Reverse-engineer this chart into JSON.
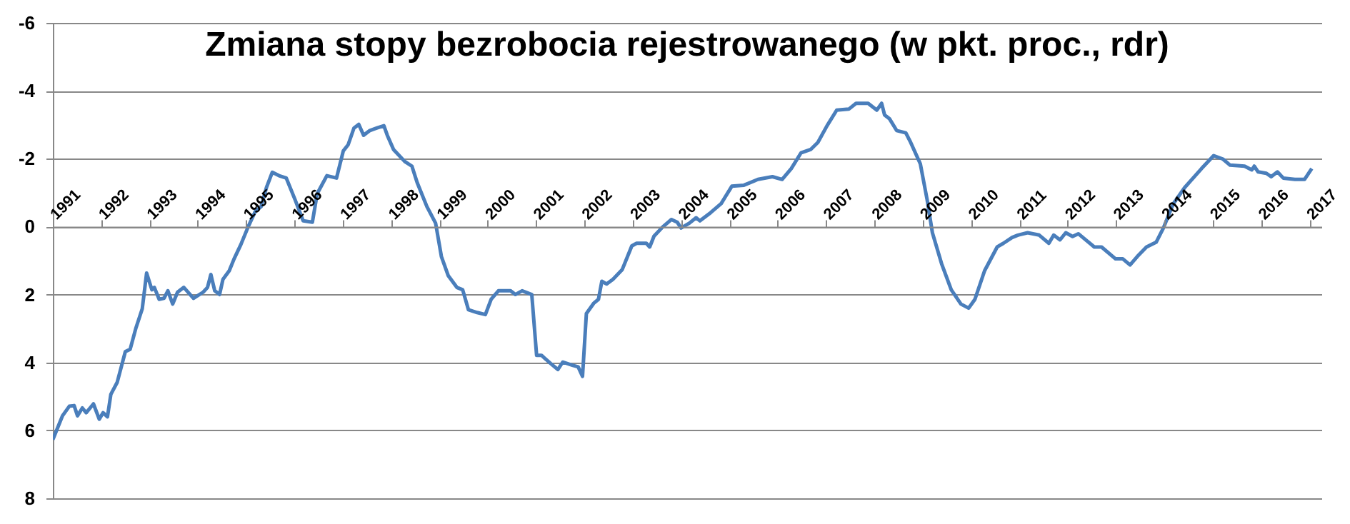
{
  "chart_data": {
    "type": "line",
    "title": "Zmiana stopy bezrobocia rejestrowanego (w pkt. proc., rdr)",
    "xlim": [
      1991,
      2017.25
    ],
    "xticks": [
      1991,
      1992,
      1993,
      1994,
      1995,
      1996,
      1997,
      1998,
      1999,
      2000,
      2001,
      2002,
      2003,
      2004,
      2005,
      2006,
      2007,
      2008,
      2009,
      2010,
      2011,
      2012,
      2013,
      2014,
      2015,
      2016,
      2017
    ],
    "ylim": [
      8,
      -6
    ],
    "yticks": [
      -6,
      -4,
      -2,
      0,
      2,
      4,
      6,
      8
    ],
    "grid": "y",
    "marker": "none",
    "line_style": "solid",
    "series": [
      {
        "color": "#4a7ebb",
        "x": [
          1991.0,
          1991.1,
          1991.2,
          1991.34,
          1991.44,
          1991.51,
          1991.61,
          1991.69,
          1991.84,
          1991.96,
          1992.04,
          1992.13,
          1992.2,
          1992.33,
          1992.5,
          1992.6,
          1992.72,
          1992.85,
          1992.94,
          1993.05,
          1993.1,
          1993.2,
          1993.3,
          1993.38,
          1993.48,
          1993.58,
          1993.71,
          1993.91,
          1994.11,
          1994.2,
          1994.27,
          1994.35,
          1994.45,
          1994.52,
          1994.65,
          1994.75,
          1994.89,
          1995.04,
          1995.19,
          1995.31,
          1995.42,
          1995.54,
          1995.68,
          1995.83,
          1996.01,
          1996.18,
          1996.37,
          1996.47,
          1996.67,
          1996.87,
          1997.01,
          1997.11,
          1997.23,
          1997.33,
          1997.43,
          1997.56,
          1997.7,
          1997.85,
          1997.92,
          1998.05,
          1998.28,
          1998.43,
          1998.54,
          1998.74,
          1998.92,
          1999.04,
          1999.18,
          1999.36,
          1999.48,
          1999.6,
          1999.78,
          1999.95,
          2000.07,
          2000.22,
          2000.47,
          2000.57,
          2000.71,
          2000.91,
          2001.01,
          2001.11,
          2001.3,
          2001.45,
          2001.55,
          2001.75,
          2001.87,
          2001.96,
          2002.04,
          2002.19,
          2002.29,
          2002.36,
          2002.46,
          2002.59,
          2002.78,
          2002.98,
          2003.08,
          2003.28,
          2003.35,
          2003.44,
          2003.62,
          2003.8,
          2003.92,
          2004.0,
          2004.17,
          2004.31,
          2004.39,
          2004.61,
          2004.83,
          2005.05,
          2005.3,
          2005.59,
          2005.89,
          2006.09,
          2006.28,
          2006.48,
          2006.68,
          2006.83,
          2007.02,
          2007.22,
          2007.47,
          2007.62,
          2007.87,
          2008.05,
          2008.15,
          2008.21,
          2008.31,
          2008.46,
          2008.65,
          2008.75,
          2008.95,
          2009.09,
          2009.2,
          2009.39,
          2009.59,
          2009.79,
          2009.95,
          2010.08,
          2010.28,
          2010.54,
          2010.67,
          2010.85,
          2010.97,
          2011.17,
          2011.41,
          2011.61,
          2011.71,
          2011.84,
          2011.96,
          2012.1,
          2012.22,
          2012.55,
          2012.7,
          2012.99,
          2013.14,
          2013.29,
          2013.44,
          2013.63,
          2013.83,
          2013.98,
          2014.18,
          2014.42,
          2014.77,
          2015.02,
          2015.21,
          2015.36,
          2015.66,
          2015.81,
          2015.86,
          2015.94,
          2016.11,
          2016.21,
          2016.34,
          2016.46,
          2016.7,
          2016.9,
          2017.05
        ],
        "values": [
          6.27,
          5.92,
          5.57,
          5.29,
          5.27,
          5.57,
          5.34,
          5.48,
          5.22,
          5.67,
          5.48,
          5.6,
          4.94,
          4.59,
          3.68,
          3.61,
          2.98,
          2.42,
          1.37,
          1.86,
          1.79,
          2.14,
          2.11,
          1.89,
          2.28,
          1.93,
          1.79,
          2.11,
          1.93,
          1.79,
          1.41,
          1.89,
          2.0,
          1.55,
          1.3,
          0.95,
          0.53,
          0.01,
          -0.45,
          -0.59,
          -1.15,
          -1.6,
          -1.5,
          -1.43,
          -0.8,
          -0.17,
          -0.13,
          -0.97,
          -1.5,
          -1.43,
          -2.23,
          -2.41,
          -2.9,
          -3.01,
          -2.69,
          -2.83,
          -2.9,
          -2.97,
          -2.69,
          -2.27,
          -1.92,
          -1.78,
          -1.29,
          -0.59,
          -0.1,
          0.88,
          1.44,
          1.79,
          1.86,
          2.45,
          2.53,
          2.59,
          2.14,
          1.89,
          1.89,
          2.0,
          1.89,
          2.0,
          3.79,
          3.79,
          4.03,
          4.21,
          3.99,
          4.08,
          4.13,
          4.41,
          2.56,
          2.26,
          2.14,
          1.61,
          1.69,
          1.55,
          1.27,
          0.57,
          0.49,
          0.49,
          0.6,
          0.28,
          0.01,
          -0.21,
          -0.13,
          0.04,
          -0.1,
          -0.26,
          -0.17,
          -0.41,
          -0.68,
          -1.19,
          -1.22,
          -1.39,
          -1.47,
          -1.39,
          -1.71,
          -2.17,
          -2.27,
          -2.48,
          -2.97,
          -3.43,
          -3.46,
          -3.63,
          -3.63,
          -3.43,
          -3.63,
          -3.29,
          -3.18,
          -2.83,
          -2.76,
          -2.48,
          -1.85,
          -0.8,
          0.18,
          1.09,
          1.86,
          2.28,
          2.4,
          2.14,
          1.3,
          0.6,
          0.49,
          0.32,
          0.25,
          0.18,
          0.25,
          0.49,
          0.25,
          0.39,
          0.18,
          0.29,
          0.21,
          0.6,
          0.6,
          0.95,
          0.95,
          1.13,
          0.88,
          0.6,
          0.46,
          0.04,
          -0.66,
          -1.15,
          -1.71,
          -2.09,
          -1.99,
          -1.81,
          -1.78,
          -1.67,
          -1.78,
          -1.61,
          -1.57,
          -1.47,
          -1.61,
          -1.43,
          -1.39,
          -1.39,
          -1.71
        ]
      }
    ]
  }
}
